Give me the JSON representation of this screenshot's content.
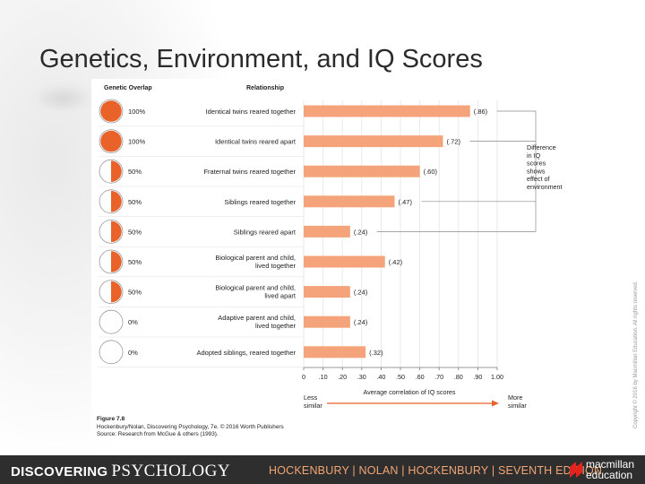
{
  "slide": {
    "title": "Genetics, Environment, and IQ Scores",
    "copyright": "Copyright © 2016 by Macmillan Education. All rights reserved."
  },
  "footer": {
    "brand_bold": "DISCOVERING",
    "brand_serif": "PSYCHOLOGY",
    "authors": "HOCKENBURY | NOLAN | HOCKENBURY | SEVENTH EDITION",
    "publisher": [
      "macmillan",
      "education"
    ],
    "publisher_color": "#e4231c"
  },
  "chart_data": {
    "type": "bar",
    "orientation": "horizontal",
    "column_headers": {
      "overlap": "Genetic Overlap",
      "relationship": "Relationship"
    },
    "categories": [
      "Identical twins reared together",
      "Identical twins reared apart",
      "Fraternal twins reared together",
      "Siblings reared together",
      "Siblings reared apart",
      "Biological parent and child, lived together",
      "Biological parent and child, lived apart",
      "Adaptive parent and child, lived together",
      "Adopted siblings, reared together"
    ],
    "category_lines": [
      [
        "Identical twins reared together"
      ],
      [
        "Identical twins reared apart"
      ],
      [
        "Fraternal twins reared together"
      ],
      [
        "Siblings reared together"
      ],
      [
        "Siblings reared apart"
      ],
      [
        "Biological parent and child,",
        "lived together"
      ],
      [
        "Biological parent and child,",
        "lived apart"
      ],
      [
        "Adaptive parent and child,",
        "lived together"
      ],
      [
        "Adopted siblings, reared together"
      ]
    ],
    "genetic_overlap": [
      100,
      100,
      50,
      50,
      50,
      50,
      50,
      0,
      0
    ],
    "overlap_labels": [
      "100%",
      "100%",
      "50%",
      "50%",
      "50%",
      "50%",
      "50%",
      "0%",
      "0%"
    ],
    "values": [
      0.86,
      0.72,
      0.6,
      0.47,
      0.24,
      0.42,
      0.24,
      0.24,
      0.32
    ],
    "value_labels": [
      "(.86)",
      "(.72)",
      "(.60)",
      "(.47)",
      "(.24)",
      "(.42)",
      "(.24)",
      "(.24)",
      "(.32)"
    ],
    "xlim": [
      0,
      1.0
    ],
    "xticks": [
      "0",
      ".10",
      ".20",
      ".30",
      ".40",
      ".50",
      ".60",
      ".70",
      ".80",
      ".90",
      "1.00"
    ],
    "xlabel": "Average correlation of IQ scores",
    "less_label": [
      "Less",
      "similar"
    ],
    "more_label": [
      "More",
      "similar"
    ],
    "annotation": [
      "Difference",
      "in IQ",
      "scores",
      "shows",
      "effect of",
      "environment"
    ],
    "caption_title": "Figure 7.8",
    "caption_lines": [
      "Hockenbury/Nolan, Discovering Psychology, 7e. © 2016 Worth Publishers",
      "Source: Research from McGue & others (1993)."
    ],
    "bar_color": "#f4a37a",
    "accent_color": "#e8622a",
    "grid": true
  }
}
